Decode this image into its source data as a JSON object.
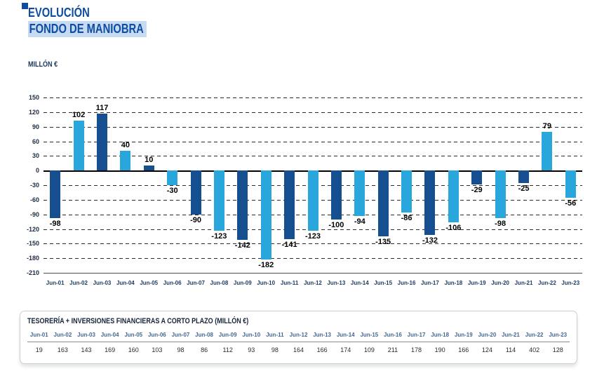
{
  "header": {
    "title_line1": "EVOLUCIÓN",
    "title_line2": "FONDO DE MANIOBRA",
    "unit_label": "MILLÓN €"
  },
  "colors": {
    "dark_bar": "#164f90",
    "light_bar": "#29a7dc",
    "title_blue": "#0d4da1",
    "title_highlight": "#c6dbf2",
    "accent_square": "#0d4da1"
  },
  "chart_data": {
    "type": "bar",
    "title": "EVOLUCIÓN FONDO DE MANIOBRA",
    "ylabel": "MILLÓN €",
    "ylim": [
      -210,
      150
    ],
    "ytick_step": 30,
    "yticks": [
      150,
      120,
      90,
      60,
      30,
      0,
      -30,
      -60,
      -90,
      -120,
      -150,
      -180,
      -210
    ],
    "grid": "dashed horizontal, solid zero baseline",
    "legend": "none",
    "categories": [
      "Jun-01",
      "Jun-02",
      "Jun-03",
      "Jun-04",
      "Jun-05",
      "Jun-06",
      "Jun-07",
      "Jun-08",
      "Jun-09",
      "Jun-10",
      "Jun-11",
      "Jun-12",
      "Jun-13",
      "Jun-14",
      "Jun-15",
      "Jun-16",
      "Jun-17",
      "Jun-18",
      "Jun-19",
      "Jun-20",
      "Jun-21",
      "Jun-22",
      "Jun-23"
    ],
    "values": [
      -98,
      102,
      117,
      40,
      10,
      -30,
      -90,
      -123,
      -142,
      -182,
      -141,
      -123,
      -100,
      -94,
      -135,
      -86,
      -132,
      -106,
      -29,
      -98,
      -25,
      79,
      -56
    ],
    "bar_colors": [
      "dark",
      "light",
      "dark",
      "light",
      "dark",
      "light",
      "dark",
      "light",
      "dark",
      "light",
      "dark",
      "light",
      "dark",
      "light",
      "dark",
      "light",
      "dark",
      "light",
      "dark",
      "light",
      "dark",
      "light",
      "light"
    ]
  },
  "table": {
    "title": "TESORERÍA + INVERSIONES FINANCIERAS A CORTO PLAZO (MILLÓN €)",
    "columns": [
      "Jun-01",
      "Jun-02",
      "Jun-03",
      "Jun-04",
      "Jun-05",
      "Jun-06",
      "Jun-07",
      "Jun-08",
      "Jun-09",
      "Jun-10",
      "Jun-11",
      "Jun-12",
      "Jun-13",
      "Jun-14",
      "Jun-15",
      "Jun-16",
      "Jun-17",
      "Jun-18",
      "Jun-19",
      "Jun-20",
      "Jun-21",
      "Jun-22",
      "Jun-23"
    ],
    "values": [
      19,
      163,
      143,
      169,
      160,
      103,
      98,
      86,
      112,
      93,
      98,
      164,
      166,
      174,
      109,
      211,
      178,
      190,
      166,
      124,
      114,
      402,
      128
    ]
  }
}
